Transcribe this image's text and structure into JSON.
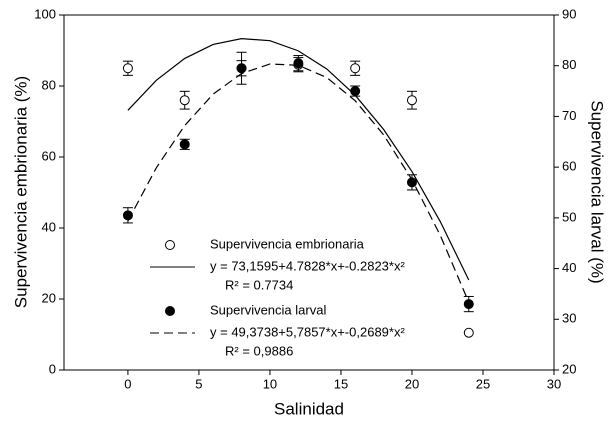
{
  "chart_data": {
    "type": "scatter",
    "x_label": "Salinidad",
    "y_label": "Supervivencia embrionaria (%)",
    "y2_label": "Supervivencia larval (%)",
    "xlim": [
      -4.5,
      30
    ],
    "xticks": [
      0,
      5,
      10,
      15,
      20,
      25,
      30
    ],
    "ylim": [
      0,
      100
    ],
    "yticks": [
      0,
      20,
      40,
      60,
      80,
      100
    ],
    "y2lim": [
      20,
      90
    ],
    "y2ticks": [
      20,
      30,
      40,
      50,
      60,
      70,
      80,
      90
    ],
    "color": "#000000",
    "series": [
      {
        "name": "Supervivencia embrionaria",
        "axis": "y",
        "marker": "open",
        "x": [
          0,
          4,
          8,
          12,
          16,
          20,
          24
        ],
        "values": [
          85,
          76,
          85,
          86,
          85,
          76,
          10.5
        ],
        "errors": [
          2,
          2.5,
          4.5,
          2,
          2,
          2.5,
          0
        ],
        "fit": {
          "label": "y = 73,1595+4.7828*x+-0.2823*x²",
          "r2": "R² = 0.7734",
          "dash": "solid",
          "x": [
            0,
            2,
            4,
            6,
            8,
            10,
            12,
            14,
            16,
            18,
            20,
            22,
            24
          ],
          "values": [
            73.16,
            81.6,
            87.77,
            91.7,
            93.35,
            92.76,
            89.9,
            84.79,
            77.41,
            67.78,
            55.9,
            41.75,
            25.35
          ]
        }
      },
      {
        "name": "Supervivencia larval",
        "axis": "y2",
        "marker": "filled",
        "x": [
          0,
          4,
          8,
          12,
          16,
          20,
          24
        ],
        "values": [
          50.5,
          64.5,
          79.5,
          80.5,
          75,
          57,
          33
        ],
        "errors": [
          1.5,
          1,
          1.5,
          1.5,
          1,
          1.5,
          1.5
        ],
        "fit": {
          "label": "y = 49,3738+5,7857*x+-0,2689*x²",
          "r2": "R² = 0,9886",
          "dash": "dashed",
          "x": [
            0,
            2,
            4,
            6,
            8,
            10,
            12,
            14,
            16,
            18,
            20,
            22,
            24
          ],
          "values": [
            49.37,
            59.87,
            68.21,
            74.4,
            78.45,
            80.34,
            80.08,
            77.67,
            73.1,
            66.39,
            57.52,
            46.51,
            33.34
          ]
        }
      }
    ]
  }
}
